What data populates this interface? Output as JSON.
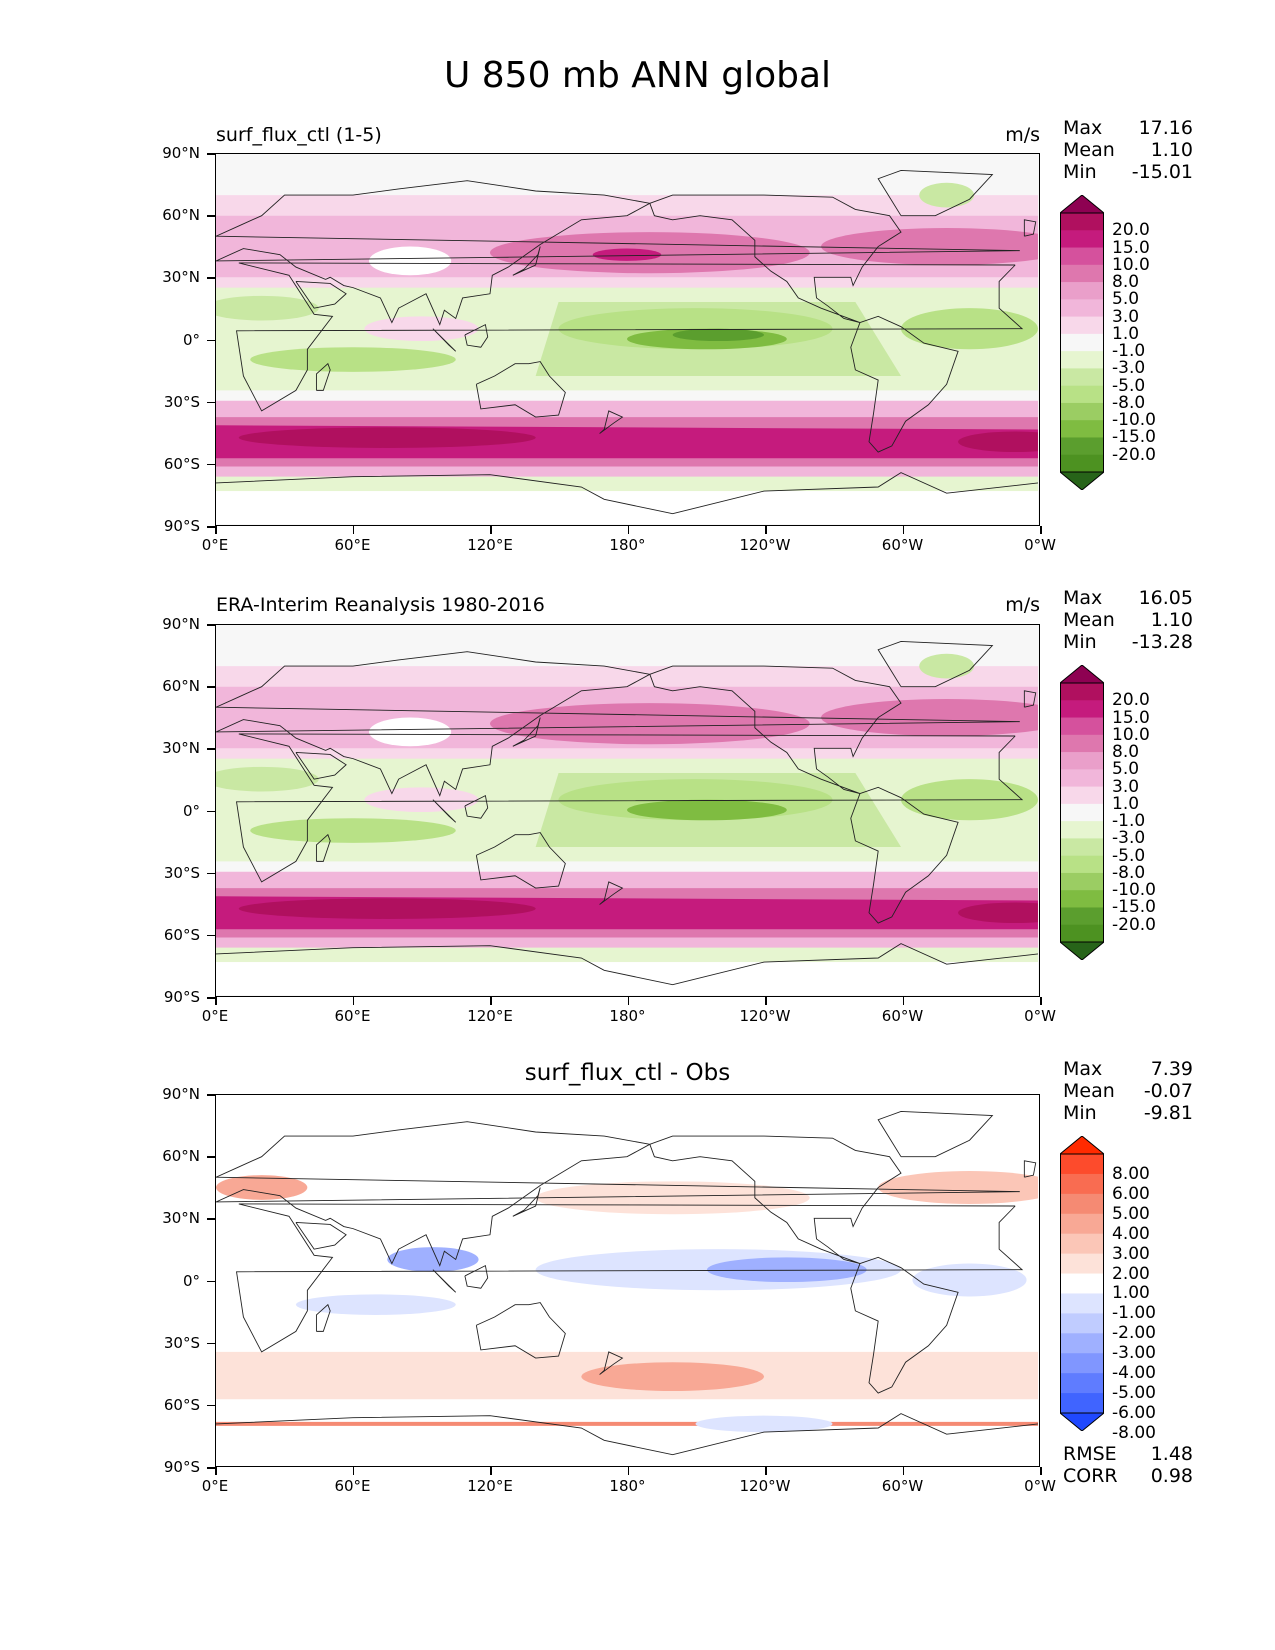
{
  "figure": {
    "title": "U 850 mb ANN global"
  },
  "axes": {
    "y_ticks": [
      "90°N",
      "60°N",
      "30°N",
      "0°",
      "30°S",
      "60°S",
      "90°S"
    ],
    "x_ticks": [
      "0°E",
      "60°E",
      "120°E",
      "180°",
      "120°W",
      "60°W",
      "0°W"
    ]
  },
  "panels": [
    {
      "title": "surf_flux_ctl (1-5)",
      "units": "m/s",
      "stats": {
        "max_label": "Max",
        "max": "17.16",
        "mean_label": "Mean",
        "mean": "1.10",
        "min_label": "Min",
        "min": "-15.01"
      },
      "colorbar_labels": [
        "20.0",
        "15.0",
        "10.0",
        "8.0",
        "5.0",
        "3.0",
        "1.0",
        "-1.0",
        "-3.0",
        "-5.0",
        "-8.0",
        "-10.0",
        "-15.0",
        "-20.0"
      ]
    },
    {
      "title": "ERA-Interim Reanalysis 1980-2016",
      "units": "m/s",
      "stats": {
        "max_label": "Max",
        "max": "16.05",
        "mean_label": "Mean",
        "mean": "1.10",
        "min_label": "Min",
        "min": "-13.28"
      },
      "colorbar_labels": [
        "20.0",
        "15.0",
        "10.0",
        "8.0",
        "5.0",
        "3.0",
        "1.0",
        "-1.0",
        "-3.0",
        "-5.0",
        "-8.0",
        "-10.0",
        "-15.0",
        "-20.0"
      ]
    },
    {
      "title": "surf_flux_ctl - Obs",
      "stats": {
        "max_label": "Max",
        "max": "7.39",
        "mean_label": "Mean",
        "mean": "-0.07",
        "min_label": "Min",
        "min": "-9.81"
      },
      "extra": {
        "rmse_label": "RMSE",
        "rmse": "1.48",
        "corr_label": "CORR",
        "corr": "0.98"
      },
      "colorbar_labels": [
        "8.00",
        "6.00",
        "5.00",
        "4.00",
        "3.00",
        "2.00",
        "1.00",
        "-1.00",
        "-2.00",
        "-3.00",
        "-4.00",
        "-5.00",
        "-6.00",
        "-8.00"
      ]
    }
  ],
  "colors": {
    "piyg": [
      "#8e0152",
      "#b0105f",
      "#c51b7d",
      "#d5519d",
      "#de77ae",
      "#ea9fca",
      "#f1b6da",
      "#f8d8ea",
      "#f7f7f7",
      "#e6f5d0",
      "#c9e8a3",
      "#b8e186",
      "#9bcd63",
      "#7fbc41",
      "#5b9e2e",
      "#4d9221",
      "#276419"
    ],
    "diff": [
      "#ff2a00",
      "#fd4b2c",
      "#f96c51",
      "#f58a73",
      "#f8a895",
      "#fbc6b7",
      "#fde2d9",
      "#ffffff",
      "#dde4ff",
      "#c0ccff",
      "#9fb0ff",
      "#8096ff",
      "#5f7cff",
      "#4064ff",
      "#1f48ff"
    ]
  },
  "chart_data": [
    {
      "type": "heatmap",
      "title": "surf_flux_ctl (1-5)",
      "field": "U wind at 850 mb, annual mean",
      "units": "m/s",
      "lon_range": [
        0,
        360
      ],
      "lat_range": [
        -90,
        90
      ],
      "levels": [
        -20,
        -15,
        -10,
        -8,
        -5,
        -3,
        -1,
        1,
        3,
        5,
        8,
        10,
        15,
        20
      ],
      "max": 17.16,
      "mean": 1.1,
      "min": -15.01
    },
    {
      "type": "heatmap",
      "title": "ERA-Interim Reanalysis 1980-2016",
      "field": "U wind at 850 mb, annual mean",
      "units": "m/s",
      "lon_range": [
        0,
        360
      ],
      "lat_range": [
        -90,
        90
      ],
      "levels": [
        -20,
        -15,
        -10,
        -8,
        -5,
        -3,
        -1,
        1,
        3,
        5,
        8,
        10,
        15,
        20
      ],
      "max": 16.05,
      "mean": 1.1,
      "min": -13.28
    },
    {
      "type": "heatmap",
      "title": "surf_flux_ctl - Obs",
      "field": "Difference (model - obs)",
      "lon_range": [
        0,
        360
      ],
      "lat_range": [
        -90,
        90
      ],
      "levels": [
        -8,
        -6,
        -5,
        -4,
        -3,
        -2,
        -1,
        1,
        2,
        3,
        4,
        5,
        6,
        8
      ],
      "max": 7.39,
      "mean": -0.07,
      "min": -9.81,
      "rmse": 1.48,
      "corr": 0.98
    }
  ]
}
